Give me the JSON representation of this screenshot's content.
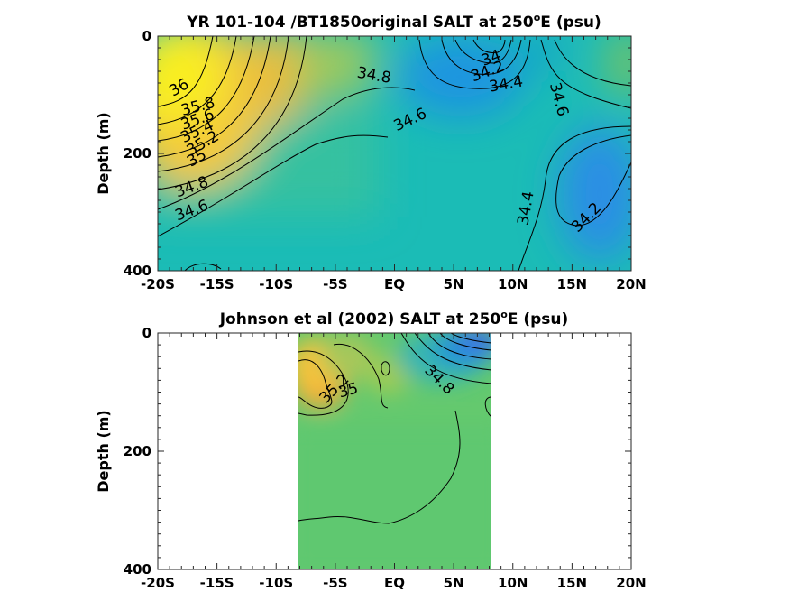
{
  "chart_data": [
    {
      "type": "heatmap",
      "title": "YR 101-104 /BT1850original SALT at 250",
      "title_super": "o",
      "title_tail": "E (psu)",
      "ylabel": "Depth (m)",
      "xlim": [
        -20,
        20
      ],
      "ylim": [
        0,
        400
      ],
      "y_reversed": true,
      "x_ticks": [
        -20,
        -15,
        -10,
        -5,
        0,
        5,
        10,
        15,
        20
      ],
      "x_tick_labels": [
        "-20S",
        "-15S",
        "-10S",
        "-5S",
        "EQ",
        "5N",
        "10N",
        "15N",
        "20N"
      ],
      "y_ticks": [
        0,
        200,
        400
      ],
      "y_tick_labels": [
        "0",
        "200",
        "400"
      ],
      "contour_labels": [
        {
          "text": "36",
          "x": -18,
          "y": 95,
          "angle": -30
        },
        {
          "text": "35.8",
          "x": -16.5,
          "y": 128,
          "angle": -15
        },
        {
          "text": "35.6",
          "x": -16.5,
          "y": 150,
          "angle": -20
        },
        {
          "text": "35.4",
          "x": -16.5,
          "y": 170,
          "angle": -25
        },
        {
          "text": "35.2",
          "x": -16,
          "y": 190,
          "angle": -30
        },
        {
          "text": "35",
          "x": -16.5,
          "y": 215,
          "angle": -30
        },
        {
          "text": "34.8",
          "x": -17,
          "y": 265,
          "angle": -20
        },
        {
          "text": "34.6",
          "x": -17,
          "y": 305,
          "angle": -20
        },
        {
          "text": "34.8",
          "x": -1.8,
          "y": 75,
          "angle": 10
        },
        {
          "text": "34.6",
          "x": 1.5,
          "y": 150,
          "angle": -25
        },
        {
          "text": "34",
          "x": 8.3,
          "y": 45,
          "angle": -20
        },
        {
          "text": "34.2",
          "x": 8,
          "y": 68,
          "angle": -20
        },
        {
          "text": "34.4",
          "x": 9.5,
          "y": 90,
          "angle": -10
        },
        {
          "text": "34.6",
          "x": 13.5,
          "y": 110,
          "angle": 75
        },
        {
          "text": "34.4",
          "x": 11.5,
          "y": 295,
          "angle": -80
        },
        {
          "text": "34.2",
          "x": 16.5,
          "y": 315,
          "angle": -45
        }
      ]
    },
    {
      "type": "heatmap",
      "title": "Johnson et al (2002) SALT at 250",
      "title_super": "o",
      "title_tail": "E (psu)",
      "ylabel": "Depth (m)",
      "xlim": [
        -20,
        20
      ],
      "ylim": [
        0,
        400
      ],
      "y_reversed": true,
      "data_xlim": [
        -8,
        8.5
      ],
      "x_ticks": [
        -20,
        -15,
        -10,
        -5,
        0,
        5,
        10,
        15,
        20
      ],
      "x_tick_labels": [
        "-20S",
        "-15S",
        "-10S",
        "-5S",
        "EQ",
        "5N",
        "10N",
        "15N",
        "20N"
      ],
      "y_ticks": [
        0,
        200,
        400
      ],
      "y_tick_labels": [
        "0",
        "200",
        "400"
      ],
      "contour_labels": [
        {
          "text": "35.2",
          "x": -4.8,
          "y": 100,
          "angle": -45
        },
        {
          "text": "35",
          "x": -3.8,
          "y": 105,
          "angle": -15
        },
        {
          "text": "34.8",
          "x": 3.5,
          "y": 85,
          "angle": 45
        }
      ]
    }
  ]
}
